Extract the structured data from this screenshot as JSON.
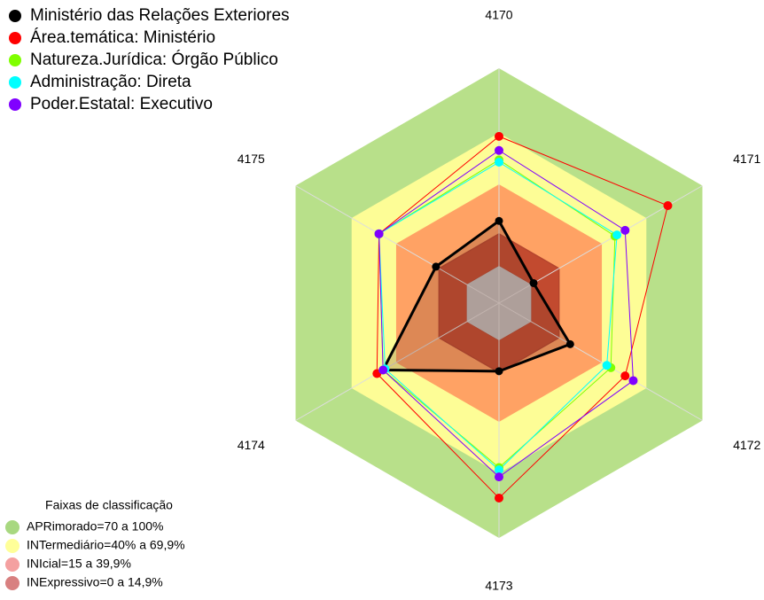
{
  "chart_data": {
    "type": "radar",
    "categories": [
      "4170",
      "4171",
      "4172",
      "4173",
      "4174",
      "4175"
    ],
    "rlim": [
      0,
      100
    ],
    "series": [
      {
        "name": "Ministério das Relações Exteriores",
        "color": "#000000",
        "values": [
          35,
          17,
          35,
          29,
          57,
          31
        ]
      },
      {
        "name": "Área.temática: Ministério",
        "color": "#ff0000",
        "values": [
          71,
          83,
          62,
          83,
          60,
          59
        ]
      },
      {
        "name": "Natureza.Jurídica: Órgão Público",
        "color": "#7fff00",
        "values": [
          61,
          57,
          55,
          70,
          57,
          59
        ]
      },
      {
        "name": "Administração: Direta",
        "color": "#00ffff",
        "values": [
          60,
          58,
          53,
          71,
          56,
          59
        ]
      },
      {
        "name": "Poder.Estatal: Executivo",
        "color": "#8000ff",
        "values": [
          65,
          62,
          66,
          74,
          57,
          59
        ]
      }
    ],
    "bands_title": "Faixas de classificação",
    "bands": [
      {
        "label": "APRimorado=70 a 100%",
        "color": "#a8d880"
      },
      {
        "label": "INTermediário=40% a 69,9%",
        "color": "#ffff99"
      },
      {
        "label": "INIcial=15 a 39,9%",
        "color": "#f4a0a0"
      },
      {
        "label": "INExpressivo=0 a 14,9%",
        "color": "#d88080"
      }
    ]
  }
}
